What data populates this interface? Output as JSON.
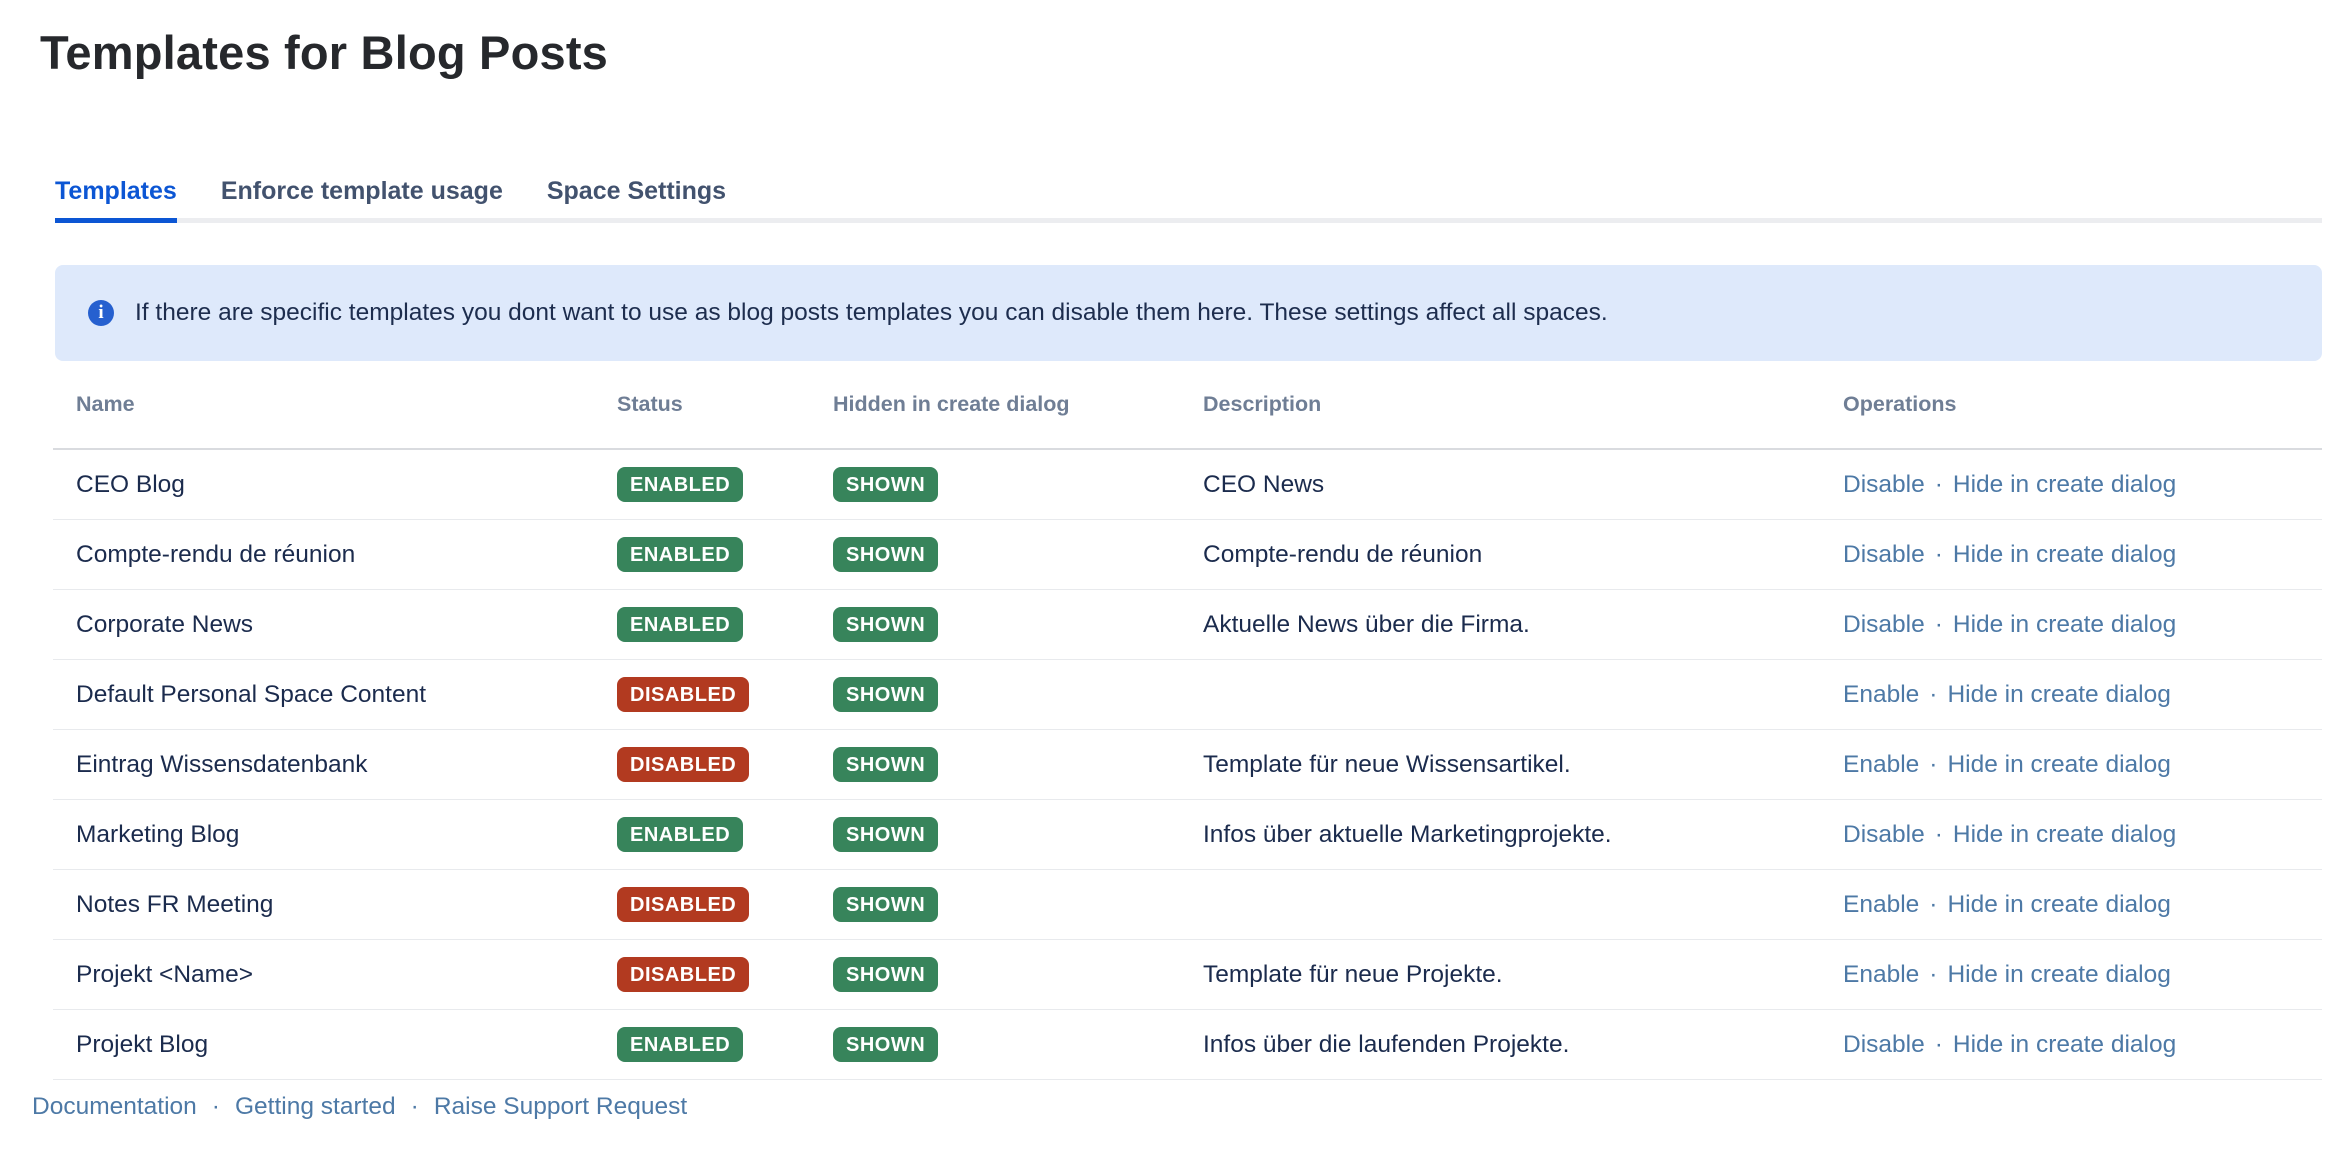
{
  "page": {
    "title": "Templates for Blog Posts"
  },
  "tabs": [
    {
      "label": "Templates",
      "active": true
    },
    {
      "label": "Enforce template usage",
      "active": false
    },
    {
      "label": "Space Settings",
      "active": false
    }
  ],
  "banner": {
    "icon": "info-icon",
    "icon_glyph": "i",
    "text": "If there are specific templates you dont want to use as blog posts templates you can disable them here. These settings affect all spaces."
  },
  "table": {
    "columns": [
      "Name",
      "Status",
      "Hidden in create dialog",
      "Description",
      "Operations"
    ],
    "op_separator": "·",
    "rows": [
      {
        "name": "CEO Blog",
        "status": "ENABLED",
        "hidden": "SHOWN",
        "description": "CEO News",
        "op1": "Disable",
        "op2": "Hide in create dialog"
      },
      {
        "name": "Compte-rendu de réunion",
        "status": "ENABLED",
        "hidden": "SHOWN",
        "description": "Compte-rendu de réunion",
        "op1": "Disable",
        "op2": "Hide in create dialog"
      },
      {
        "name": "Corporate News",
        "status": "ENABLED",
        "hidden": "SHOWN",
        "description": "Aktuelle News über die Firma.",
        "op1": "Disable",
        "op2": "Hide in create dialog"
      },
      {
        "name": "Default Personal Space Content",
        "status": "DISABLED",
        "hidden": "SHOWN",
        "description": "",
        "op1": "Enable",
        "op2": "Hide in create dialog"
      },
      {
        "name": "Eintrag Wissensdatenbank",
        "status": "DISABLED",
        "hidden": "SHOWN",
        "description": "Template für neue Wissensartikel.",
        "op1": "Enable",
        "op2": "Hide in create dialog"
      },
      {
        "name": "Marketing Blog",
        "status": "ENABLED",
        "hidden": "SHOWN",
        "description": "Infos über aktuelle Marketingprojekte.",
        "op1": "Disable",
        "op2": "Hide in create dialog"
      },
      {
        "name": "Notes FR Meeting",
        "status": "DISABLED",
        "hidden": "SHOWN",
        "description": "",
        "op1": "Enable",
        "op2": "Hide in create dialog"
      },
      {
        "name": "Projekt <Name>",
        "status": "DISABLED",
        "hidden": "SHOWN",
        "description": "Template für neue Projekte.",
        "op1": "Enable",
        "op2": "Hide in create dialog"
      },
      {
        "name": "Projekt Blog",
        "status": "ENABLED",
        "hidden": "SHOWN",
        "description": "Infos über die laufenden Projekte.",
        "op1": "Disable",
        "op2": "Hide in create dialog"
      }
    ]
  },
  "footer": {
    "separator": "·",
    "links": [
      "Documentation",
      "Getting started",
      "Raise Support Request"
    ]
  },
  "colors": {
    "active_tab_blue": "#0C56D4",
    "banner_background": "#DEE9FB",
    "banner_icon_blue": "#2660CF",
    "badge_green": "#37845B",
    "badge_red": "#B23A20",
    "link_blue": "#4D79A6",
    "text_navy": "#1B2B4D",
    "header_gray": "#6F7E95"
  }
}
